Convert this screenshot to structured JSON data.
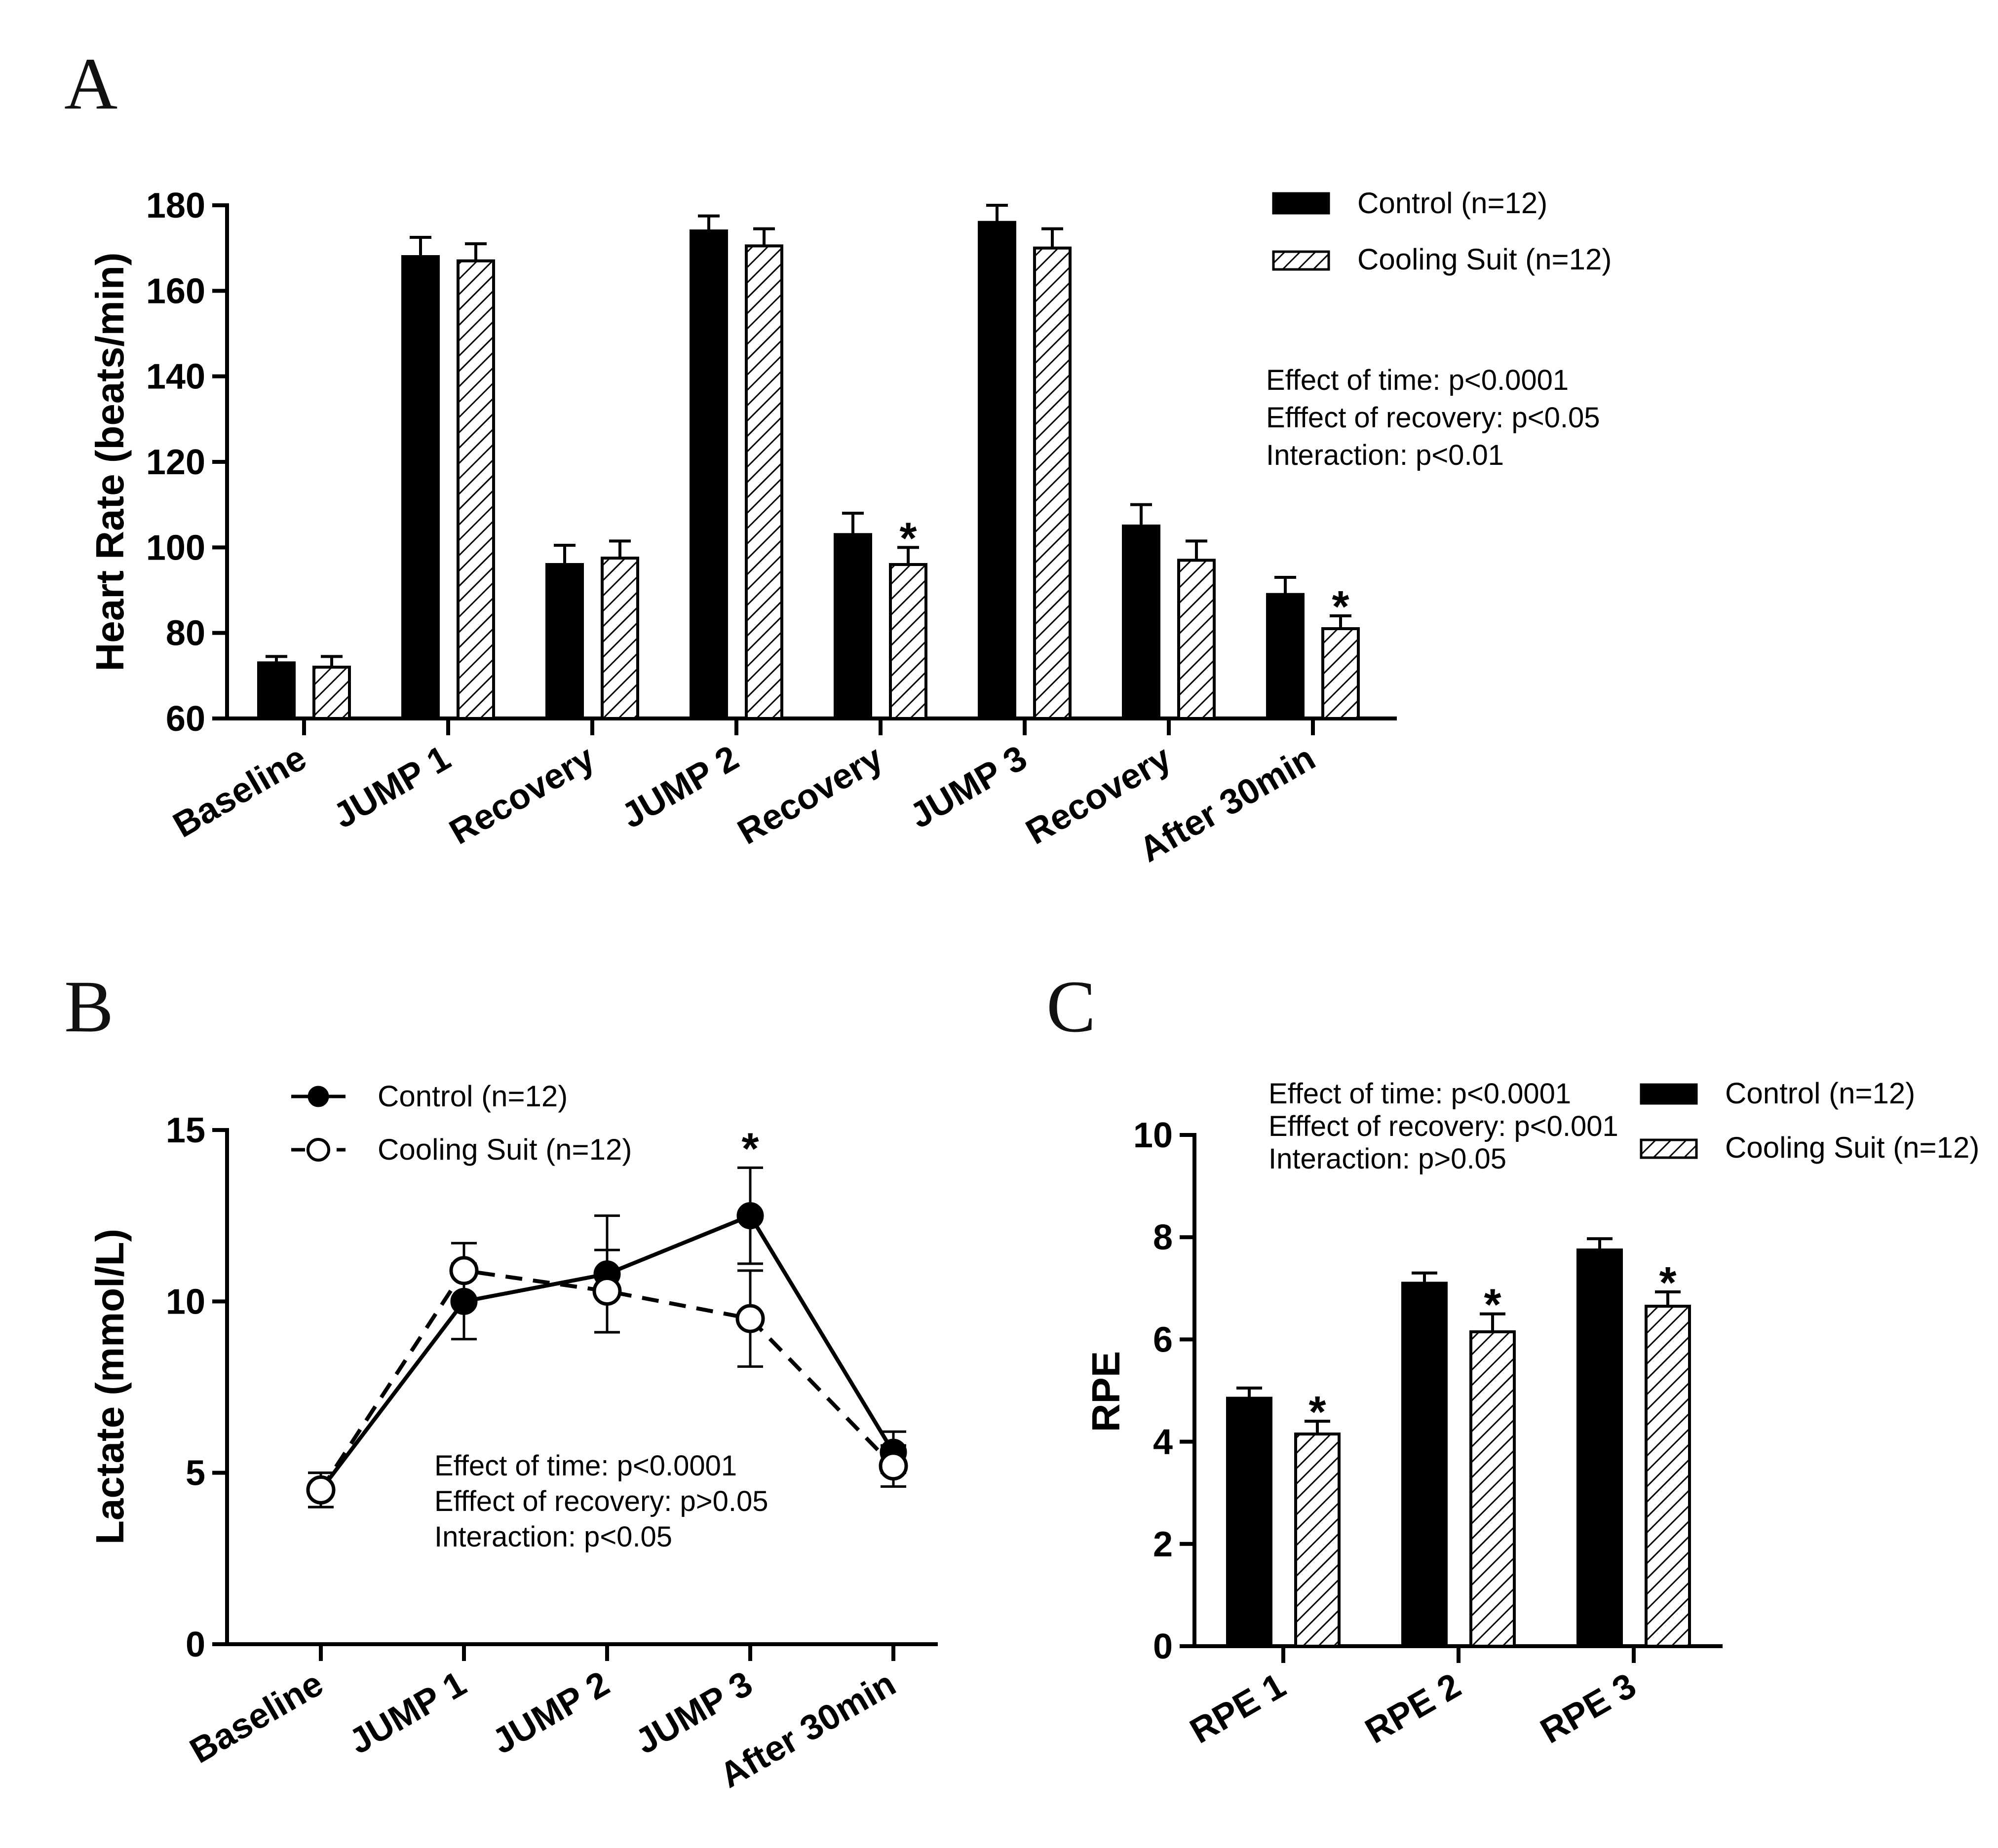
{
  "colors": {
    "control": "#000000",
    "cooling_stroke": "#000000",
    "cooling_hatch": "#000000",
    "cooling_bg": "#ffffff"
  },
  "chart_data": [
    {
      "panel": "A",
      "type": "bar",
      "ylabel": "Heart Rate (beats/min)",
      "ylim": [
        60,
        180
      ],
      "yticks": [
        "60",
        "80",
        "100",
        "120",
        "140",
        "160",
        "180"
      ],
      "categories": [
        "Baseline",
        "JUMP 1",
        "Recovery",
        "JUMP 2",
        "Recovery",
        "JUMP 3",
        "Recovery",
        "After 30min"
      ],
      "series": [
        {
          "name": "Control (n=12)",
          "values": [
            73,
            168,
            96,
            174,
            103,
            176,
            105,
            89
          ],
          "errors": [
            1.5,
            4.5,
            4.5,
            3.5,
            5,
            4,
            5,
            4
          ]
        },
        {
          "name": "Cooling Suit (n=12)",
          "values": [
            72,
            167,
            97.5,
            170.5,
            96,
            170,
            97,
            81
          ],
          "errors": [
            2.5,
            4,
            4,
            4,
            4,
            4.5,
            4.5,
            3
          ]
        }
      ],
      "significance": [
        {
          "category_index": 4,
          "series_index": 1,
          "label": "*"
        },
        {
          "category_index": 7,
          "series_index": 1,
          "label": "*"
        }
      ],
      "stats": [
        "Effect of time: p<0.0001",
        "Efffect of recovery: p<0.05",
        "Interaction: p<0.01"
      ],
      "legend_position": "top-right"
    },
    {
      "panel": "B",
      "type": "line",
      "ylabel": "Lactate (mmol/L)",
      "ylim": [
        0,
        15
      ],
      "yticks": [
        "0",
        "5",
        "10",
        "15"
      ],
      "categories": [
        "Baseline",
        "JUMP 1",
        "JUMP 2",
        "JUMP 3",
        "After 30min"
      ],
      "series": [
        {
          "name": "Control (n=12)",
          "values": [
            4.5,
            10.0,
            10.8,
            12.5,
            5.6
          ],
          "errors": [
            0.5,
            1.1,
            1.7,
            1.4,
            0.6
          ],
          "marker": "filled-circle",
          "line": "solid"
        },
        {
          "name": "Cooling Suit (n=12)",
          "values": [
            4.5,
            10.9,
            10.3,
            9.5,
            5.2
          ],
          "errors": [
            0.5,
            0.8,
            1.2,
            1.4,
            0.6
          ],
          "marker": "open-circle",
          "line": "dashed"
        }
      ],
      "significance": [
        {
          "category_index": 3,
          "label": "*"
        }
      ],
      "stats": [
        "Effect of time: p<0.0001",
        "Efffect of recovery: p>0.05",
        "Interaction: p<0.05"
      ],
      "legend_position": "top"
    },
    {
      "panel": "C",
      "type": "bar",
      "ylabel": "RPE",
      "ylim": [
        0,
        10
      ],
      "yticks": [
        "0",
        "2",
        "4",
        "6",
        "8",
        "10"
      ],
      "categories": [
        "RPE 1",
        "RPE 2",
        "RPE 3"
      ],
      "series": [
        {
          "name": "Control (n=12)",
          "values": [
            4.85,
            7.1,
            7.75
          ],
          "errors": [
            0.2,
            0.2,
            0.22
          ]
        },
        {
          "name": "Cooling Suit (n=12)",
          "values": [
            4.15,
            6.15,
            6.65
          ],
          "errors": [
            0.25,
            0.35,
            0.28
          ]
        }
      ],
      "significance": [
        {
          "category_index": 0,
          "series_index": 1,
          "label": "*"
        },
        {
          "category_index": 1,
          "series_index": 1,
          "label": "*"
        },
        {
          "category_index": 2,
          "series_index": 1,
          "label": "*"
        }
      ],
      "stats": [
        "Effect of time: p<0.0001",
        "Efffect of recovery: p<0.001",
        "Interaction: p>0.05"
      ],
      "legend_position": "top-right"
    }
  ]
}
